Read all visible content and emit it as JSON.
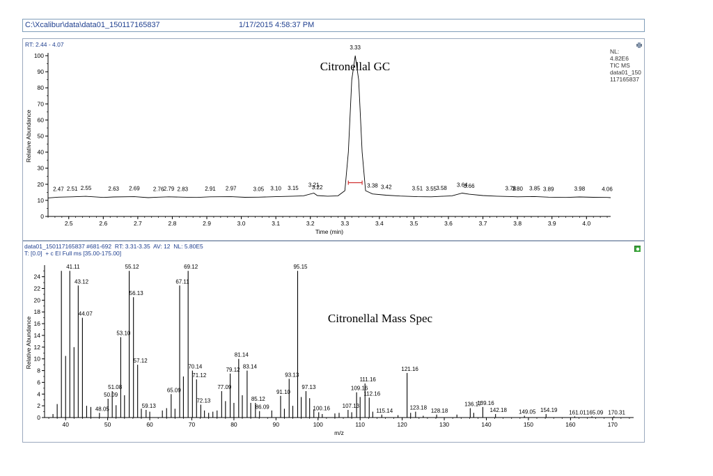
{
  "header": {
    "path": "C:\\Xcalibur\\data\\data01_150117165837",
    "datetime": "1/17/2015 4:58:37 PM"
  },
  "gc_pane": {
    "rt_range": "RT: 2.44 - 4.07",
    "nl_lines": [
      "NL:",
      "4.82E6",
      "TIC MS",
      "data01_150",
      "117165837"
    ]
  },
  "ms_pane": {
    "info_line1": "data01_150117165837 #681-692  RT: 3.31-3.35  AV: 12  NL: 5.80E5",
    "info_line2": "T: [0.0]  + c EI Full ms [35.00-175.00]"
  },
  "colors": {
    "accent_text": "#1f3f8f",
    "trace": "#000000",
    "peak_marker": "#d03030",
    "label_underline": "#2e9e3e"
  },
  "chart_data": [
    {
      "type": "line",
      "title": "Citronellal GC",
      "xlabel": "Time (min)",
      "ylabel": "Relative Abundance",
      "xlim": [
        2.44,
        4.07
      ],
      "ylim": [
        0,
        100
      ],
      "xticks": [
        2.5,
        2.6,
        2.7,
        2.8,
        2.9,
        3.0,
        3.1,
        3.2,
        3.3,
        3.4,
        3.5,
        3.6,
        3.7,
        3.8,
        3.9,
        4.0
      ],
      "xtick_labels": [
        "2.5",
        "2.6",
        "2.7",
        "2.8",
        "2.9",
        "3.0",
        "3.1",
        "3.2",
        "3.3",
        "3.4",
        "3.5",
        "3.6",
        "3.7",
        "3.8",
        "3.9",
        "4.0"
      ],
      "yticks": [
        0,
        10,
        20,
        30,
        40,
        50,
        60,
        70,
        80,
        90,
        100
      ],
      "ytick_labels": [
        "0",
        "10",
        "20",
        "30",
        "40",
        "50",
        "60",
        "70",
        "80",
        "90",
        "100"
      ],
      "trace": {
        "x": [
          2.44,
          2.47,
          2.51,
          2.55,
          2.6,
          2.63,
          2.69,
          2.73,
          2.76,
          2.79,
          2.83,
          2.87,
          2.91,
          2.97,
          3.01,
          3.05,
          3.1,
          3.15,
          3.18,
          3.21,
          3.22,
          3.25,
          3.28,
          3.3,
          3.31,
          3.32,
          3.33,
          3.34,
          3.35,
          3.36,
          3.38,
          3.42,
          3.46,
          3.51,
          3.55,
          3.58,
          3.61,
          3.64,
          3.66,
          3.7,
          3.74,
          3.78,
          3.8,
          3.85,
          3.89,
          3.94,
          3.98,
          4.02,
          4.06,
          4.07
        ],
        "y": [
          11.5,
          12,
          12.2,
          12.5,
          11.8,
          12.1,
          12.3,
          11.7,
          12,
          12.2,
          12,
          11.8,
          12.2,
          12.3,
          11.9,
          12,
          12.3,
          12.6,
          12.8,
          14.5,
          13,
          12.6,
          12.8,
          16,
          40,
          85,
          100,
          85,
          40,
          16,
          14,
          13.2,
          12.7,
          12.3,
          12.2,
          12.5,
          12.8,
          14.5,
          13.8,
          13,
          12.6,
          12.4,
          12.2,
          12.4,
          12,
          11.8,
          12.1,
          11.9,
          11.8,
          11.7
        ]
      },
      "peak_labels": [
        {
          "x": 2.47,
          "y": 12,
          "text": "2.47"
        },
        {
          "x": 2.51,
          "y": 12.2,
          "text": "2.51"
        },
        {
          "x": 2.55,
          "y": 12.5,
          "text": "2.55"
        },
        {
          "x": 2.63,
          "y": 12.1,
          "text": "2.63"
        },
        {
          "x": 2.69,
          "y": 12.3,
          "text": "2.69"
        },
        {
          "x": 2.76,
          "y": 12,
          "text": "2.76"
        },
        {
          "x": 2.79,
          "y": 12.2,
          "text": "2.79"
        },
        {
          "x": 2.83,
          "y": 12,
          "text": "2.83"
        },
        {
          "x": 2.91,
          "y": 12.2,
          "text": "2.91"
        },
        {
          "x": 2.97,
          "y": 12.3,
          "text": "2.97"
        },
        {
          "x": 3.05,
          "y": 12,
          "text": "3.05"
        },
        {
          "x": 3.1,
          "y": 12.3,
          "text": "3.10"
        },
        {
          "x": 3.15,
          "y": 12.6,
          "text": "3.15"
        },
        {
          "x": 3.21,
          "y": 14.5,
          "text": "3.21"
        },
        {
          "x": 3.22,
          "y": 13,
          "text": "3.22"
        },
        {
          "x": 3.33,
          "y": 100,
          "text": "3.33"
        },
        {
          "x": 3.38,
          "y": 14,
          "text": "3.38"
        },
        {
          "x": 3.42,
          "y": 13.2,
          "text": "3.42"
        },
        {
          "x": 3.51,
          "y": 12.3,
          "text": "3.51"
        },
        {
          "x": 3.55,
          "y": 12.2,
          "text": "3.55"
        },
        {
          "x": 3.58,
          "y": 12.5,
          "text": "3.58"
        },
        {
          "x": 3.64,
          "y": 14.5,
          "text": "3.64"
        },
        {
          "x": 3.66,
          "y": 13.8,
          "text": "3.66"
        },
        {
          "x": 3.78,
          "y": 12.4,
          "text": "3.78"
        },
        {
          "x": 3.8,
          "y": 12.2,
          "text": "3.80"
        },
        {
          "x": 3.85,
          "y": 12.4,
          "text": "3.85"
        },
        {
          "x": 3.89,
          "y": 12,
          "text": "3.89"
        },
        {
          "x": 3.98,
          "y": 12.1,
          "text": "3.98"
        },
        {
          "x": 4.06,
          "y": 11.8,
          "text": "4.06"
        }
      ],
      "integration_marker": {
        "x_start": 3.31,
        "x_end": 3.35,
        "y": 21
      }
    },
    {
      "type": "bar",
      "title": "Citronellal Mass Spec",
      "xlabel": "m/z",
      "ylabel": "Relative Abundance",
      "xlim": [
        35,
        175
      ],
      "ylim": [
        0,
        25.5
      ],
      "xticks": [
        40,
        50,
        60,
        70,
        80,
        90,
        100,
        110,
        120,
        130,
        140,
        150,
        160,
        170
      ],
      "xtick_labels": [
        "40",
        "50",
        "60",
        "70",
        "80",
        "90",
        "100",
        "110",
        "120",
        "130",
        "140",
        "150",
        "160",
        "170"
      ],
      "yticks": [
        0,
        2,
        4,
        6,
        8,
        10,
        12,
        14,
        16,
        18,
        20,
        22,
        24
      ],
      "ytick_labels": [
        "0",
        "2",
        "4",
        "6",
        "8",
        "10",
        "12",
        "14",
        "16",
        "18",
        "20",
        "22",
        "24"
      ],
      "peaks": {
        "mz": [
          37,
          38,
          39,
          40,
          41,
          42,
          43,
          44,
          45,
          46,
          48.05,
          50.09,
          51.08,
          52,
          53.1,
          54,
          55.12,
          56.13,
          57.12,
          58,
          59.13,
          60,
          63,
          64,
          65.09,
          66,
          67.11,
          68,
          69.12,
          70.14,
          71.12,
          72.13,
          73,
          74,
          75,
          76,
          77.09,
          78,
          79.12,
          80,
          81.14,
          82,
          83.14,
          84,
          85.12,
          86.09,
          89,
          91.1,
          92,
          93.13,
          94,
          95.15,
          96,
          97.13,
          98,
          99,
          100.16,
          101,
          104,
          105,
          107.13,
          108,
          109.16,
          110,
          111.16,
          112.16,
          113,
          115.14,
          119,
          121.16,
          122,
          123.18,
          125,
          128.18,
          133,
          136.17,
          137,
          139.16,
          142.18,
          149.05,
          154.19,
          161.01,
          165.09,
          170.31
        ],
        "intensity": [
          0.6,
          2.3,
          25,
          10.5,
          25,
          12,
          22.5,
          17,
          2,
          1.8,
          0.8,
          3.2,
          4.5,
          2.1,
          13.7,
          3.8,
          25,
          20.5,
          9,
          1.5,
          1.3,
          1,
          1.2,
          1.6,
          4,
          1.5,
          22.5,
          7,
          25,
          8,
          6.5,
          2.2,
          1.2,
          0.8,
          1,
          1.2,
          4.5,
          2.8,
          7.5,
          2.5,
          10,
          3.8,
          8,
          2.5,
          2.5,
          1.1,
          1.2,
          3.7,
          1.5,
          6.6,
          2,
          25,
          3.5,
          4.5,
          3.3,
          1.4,
          0.9,
          0.6,
          0.7,
          0.8,
          1.3,
          0.9,
          4.3,
          3.5,
          5.8,
          3.4,
          1,
          0.5,
          0.4,
          7.6,
          0.8,
          1,
          0.3,
          0.5,
          0.5,
          1.6,
          0.8,
          1.8,
          0.6,
          0.3,
          0.6,
          0.2,
          0.2,
          0.2
        ]
      },
      "peak_labels": [
        {
          "mz": 41.11,
          "y": 25,
          "text": "41.11"
        },
        {
          "mz": 43.12,
          "y": 22.5,
          "text": "43.12"
        },
        {
          "mz": 44.07,
          "y": 17,
          "text": "44.07"
        },
        {
          "mz": 48.05,
          "y": 0.8,
          "text": "48.05"
        },
        {
          "mz": 50.09,
          "y": 3.2,
          "text": "50.09"
        },
        {
          "mz": 51.08,
          "y": 4.5,
          "text": "51.08"
        },
        {
          "mz": 53.1,
          "y": 13.7,
          "text": "53.10"
        },
        {
          "mz": 55.12,
          "y": 25,
          "text": "55.12"
        },
        {
          "mz": 56.13,
          "y": 20.5,
          "text": "56.13"
        },
        {
          "mz": 57.12,
          "y": 9,
          "text": "57.12"
        },
        {
          "mz": 59.13,
          "y": 1.3,
          "text": "59.13"
        },
        {
          "mz": 65.09,
          "y": 4,
          "text": "65.09"
        },
        {
          "mz": 67.11,
          "y": 22.5,
          "text": "67.11"
        },
        {
          "mz": 69.12,
          "y": 25,
          "text": "69.12"
        },
        {
          "mz": 70.14,
          "y": 8,
          "text": "70.14"
        },
        {
          "mz": 71.12,
          "y": 6.5,
          "text": "71.12"
        },
        {
          "mz": 72.13,
          "y": 2.2,
          "text": "72.13"
        },
        {
          "mz": 77.09,
          "y": 4.5,
          "text": "77.09"
        },
        {
          "mz": 79.12,
          "y": 7.5,
          "text": "79.12"
        },
        {
          "mz": 81.14,
          "y": 10,
          "text": "81.14"
        },
        {
          "mz": 83.14,
          "y": 8,
          "text": "83.14"
        },
        {
          "mz": 85.12,
          "y": 2.5,
          "text": "85.12"
        },
        {
          "mz": 86.09,
          "y": 1.1,
          "text": "86.09"
        },
        {
          "mz": 91.1,
          "y": 3.7,
          "text": "91.10"
        },
        {
          "mz": 93.13,
          "y": 6.6,
          "text": "93.13"
        },
        {
          "mz": 95.15,
          "y": 25,
          "text": "95.15"
        },
        {
          "mz": 97.13,
          "y": 4.5,
          "text": "97.13"
        },
        {
          "mz": 100.16,
          "y": 0.9,
          "text": "100.16"
        },
        {
          "mz": 107.13,
          "y": 1.3,
          "text": "107.13"
        },
        {
          "mz": 109.16,
          "y": 4.3,
          "text": "109.16"
        },
        {
          "mz": 111.16,
          "y": 5.8,
          "text": "111.16"
        },
        {
          "mz": 112.16,
          "y": 3.4,
          "text": "112.16"
        },
        {
          "mz": 115.14,
          "y": 0.5,
          "text": "115.14"
        },
        {
          "mz": 121.16,
          "y": 7.6,
          "text": "121.16"
        },
        {
          "mz": 123.18,
          "y": 1,
          "text": "123.18"
        },
        {
          "mz": 128.18,
          "y": 0.5,
          "text": "128.18"
        },
        {
          "mz": 136.17,
          "y": 1.6,
          "text": "136.17"
        },
        {
          "mz": 139.16,
          "y": 1.8,
          "text": "139.16"
        },
        {
          "mz": 142.18,
          "y": 0.6,
          "text": "142.18"
        },
        {
          "mz": 149.05,
          "y": 0.3,
          "text": "149.05"
        },
        {
          "mz": 154.19,
          "y": 0.6,
          "text": "154.19"
        },
        {
          "mz": 161.01,
          "y": 0.2,
          "text": "161.01"
        },
        {
          "mz": 165.09,
          "y": 0.2,
          "text": "165.09"
        },
        {
          "mz": 170.31,
          "y": 0.2,
          "text": "170.31"
        }
      ]
    }
  ]
}
